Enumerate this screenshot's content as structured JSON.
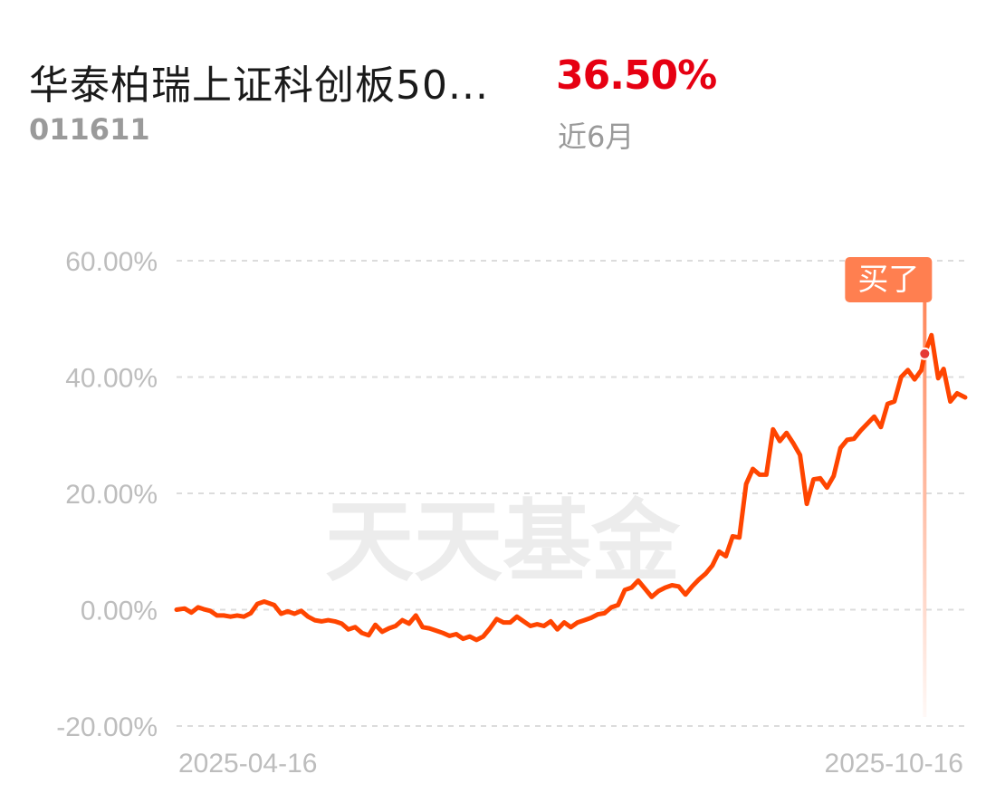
{
  "header": {
    "fund_name": "华泰柏瑞上证科创板50...",
    "fund_code": "011611",
    "return_value": "36.50%",
    "return_period": "近6月"
  },
  "watermark": "天天基金",
  "marker_label": "买了",
  "colors": {
    "line": "#ff4500",
    "return": "#e60012",
    "marker": "#ff7f50"
  },
  "chart_data": {
    "type": "line",
    "x_start": "2025-04-16",
    "x_end": "2025-10-16",
    "xticks": [
      "2025-04-16",
      "2025-10-16"
    ],
    "yticks": [
      "60.00%",
      "40.00%",
      "20.00%",
      "0.00%",
      "-20.00%"
    ],
    "ylim": [
      -20,
      60
    ],
    "grid": true,
    "marker": {
      "label": "买了",
      "date": "2025-10-09",
      "value": 44.0
    },
    "series": [
      {
        "values": [
          [
            0.0,
            0.0
          ],
          [
            1.2,
            0.2
          ],
          [
            2.2,
            -0.5
          ],
          [
            3.2,
            0.4
          ],
          [
            4.0,
            0.1
          ],
          [
            5.0,
            -0.2
          ],
          [
            6.0,
            -1.0
          ],
          [
            7.0,
            -1.0
          ],
          [
            8.0,
            -1.2
          ],
          [
            9.0,
            -1.0
          ],
          [
            10.0,
            -1.2
          ],
          [
            11.0,
            -0.6
          ],
          [
            12.0,
            1.0
          ],
          [
            13.0,
            1.4
          ],
          [
            14.5,
            0.8
          ],
          [
            15.5,
            -0.7
          ],
          [
            16.5,
            -0.3
          ],
          [
            17.5,
            -0.7
          ],
          [
            18.5,
            -0.2
          ],
          [
            19.5,
            -1.2
          ],
          [
            20.5,
            -1.8
          ],
          [
            21.5,
            -2.0
          ],
          [
            22.5,
            -1.8
          ],
          [
            23.5,
            -2.0
          ],
          [
            24.5,
            -2.4
          ],
          [
            25.5,
            -3.4
          ],
          [
            26.5,
            -3.0
          ],
          [
            27.5,
            -4.0
          ],
          [
            28.5,
            -4.4
          ],
          [
            29.5,
            -2.6
          ],
          [
            30.5,
            -3.8
          ],
          [
            31.5,
            -3.2
          ],
          [
            32.5,
            -2.8
          ],
          [
            33.5,
            -1.8
          ],
          [
            34.5,
            -2.4
          ],
          [
            35.5,
            -1.0
          ],
          [
            36.5,
            -3.0
          ],
          [
            37.5,
            -3.2
          ],
          [
            38.5,
            -3.6
          ],
          [
            39.5,
            -4.0
          ],
          [
            40.5,
            -4.5
          ],
          [
            41.5,
            -4.2
          ],
          [
            42.5,
            -5.0
          ],
          [
            43.5,
            -4.6
          ],
          [
            44.5,
            -5.2
          ],
          [
            45.5,
            -4.6
          ],
          [
            46.5,
            -3.2
          ],
          [
            47.5,
            -1.6
          ],
          [
            48.5,
            -2.2
          ],
          [
            49.5,
            -2.2
          ],
          [
            50.5,
            -1.2
          ],
          [
            51.5,
            -2.0
          ],
          [
            52.5,
            -2.8
          ],
          [
            53.5,
            -2.5
          ],
          [
            54.5,
            -2.8
          ],
          [
            55.5,
            -2.0
          ],
          [
            56.5,
            -3.4
          ],
          [
            57.5,
            -2.2
          ],
          [
            58.5,
            -3.0
          ],
          [
            59.5,
            -2.2
          ],
          [
            60.5,
            -1.8
          ],
          [
            61.5,
            -1.4
          ],
          [
            62.5,
            -0.8
          ],
          [
            63.5,
            -0.6
          ],
          [
            64.5,
            0.4
          ],
          [
            65.5,
            0.8
          ],
          [
            66.5,
            3.4
          ],
          [
            67.5,
            3.8
          ],
          [
            68.5,
            5.0
          ],
          [
            69.5,
            3.6
          ],
          [
            70.5,
            2.2
          ],
          [
            71.5,
            3.2
          ],
          [
            72.5,
            3.8
          ],
          [
            73.5,
            4.2
          ],
          [
            74.5,
            4.0
          ],
          [
            75.5,
            2.6
          ],
          [
            76.5,
            4.0
          ],
          [
            77.5,
            5.2
          ],
          [
            78.5,
            6.2
          ],
          [
            79.5,
            7.6
          ],
          [
            80.5,
            10.0
          ],
          [
            81.5,
            9.2
          ],
          [
            82.5,
            12.6
          ],
          [
            83.5,
            12.4
          ],
          [
            84.5,
            21.6
          ],
          [
            85.5,
            24.2
          ],
          [
            86.5,
            23.2
          ],
          [
            87.5,
            23.2
          ],
          [
            88.5,
            31.0
          ],
          [
            89.5,
            29.0
          ],
          [
            90.5,
            30.4
          ],
          [
            91.5,
            28.6
          ],
          [
            92.5,
            26.6
          ],
          [
            93.5,
            18.2
          ],
          [
            94.5,
            22.4
          ],
          [
            95.5,
            22.6
          ],
          [
            96.5,
            21.0
          ],
          [
            97.5,
            23.0
          ],
          [
            98.5,
            27.8
          ],
          [
            99.5,
            29.2
          ],
          [
            100.5,
            29.4
          ],
          [
            101.5,
            30.8
          ],
          [
            102.5,
            32.0
          ],
          [
            103.5,
            33.2
          ],
          [
            104.5,
            31.4
          ],
          [
            105.5,
            35.4
          ],
          [
            106.5,
            35.8
          ],
          [
            107.5,
            40.0
          ],
          [
            108.5,
            41.2
          ],
          [
            109.5,
            39.6
          ],
          [
            110.5,
            41.2
          ],
          [
            111.0,
            44.0
          ],
          [
            112.0,
            47.2
          ],
          [
            113.0,
            39.8
          ],
          [
            113.8,
            41.4
          ],
          [
            114.8,
            35.8
          ],
          [
            115.8,
            37.2
          ],
          [
            117.0,
            36.5
          ]
        ]
      }
    ]
  }
}
